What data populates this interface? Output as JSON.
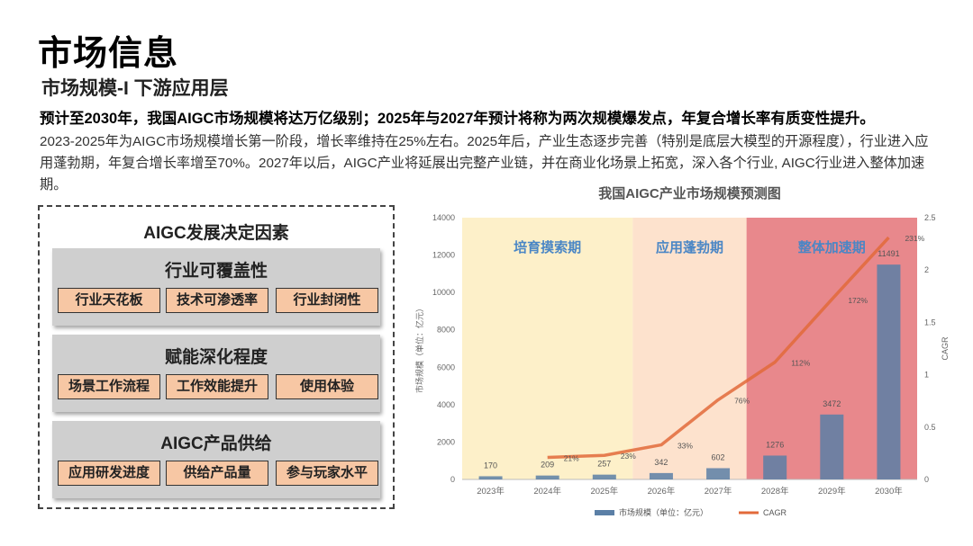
{
  "page": {
    "title": "市场信息",
    "subtitle": "市场规模-I 下游应用层",
    "headline": "预计至2030年，我国AIGC市场规模将达万亿级别；2025年与2027年预计将称为两次规模爆发点，年复合增长率有质变性提升。",
    "body": "2023-2025年为AIGC市场规模增长第一阶段，增长率维持在25%左右。2025年后，产业生态逐步完善（特别是底层大模型的开源程度），行业进入应用蓬勃期，年复合增长率增至70%。2027年以后，AIGC产业将延展出完整产业链，并在商业化场景上拓宽，深入各个行业, AIGC行业进入整体加速期。"
  },
  "factors": {
    "title": "AIGC发展决定因素",
    "groups": [
      {
        "title": "行业可覆盖性",
        "items": [
          "行业天花板",
          "技术可渗透率",
          "行业封闭性"
        ]
      },
      {
        "title": "赋能深化程度",
        "items": [
          "场景工作流程",
          "工作效能提升",
          "使用体验"
        ]
      },
      {
        "title": "AIGC产品供给",
        "items": [
          "应用研发进度",
          "供给产品量",
          "参与玩家水平"
        ]
      }
    ]
  },
  "colors": {
    "bar": "#5b7fa6",
    "line": "#e26a3a",
    "phase1": "#fdf0c9",
    "phase2": "#fde2cd",
    "phase3": "#e8888c",
    "phase_label": "#4a86c5"
  },
  "chart_data": {
    "type": "bar",
    "title": "我国AIGC产业市场规模预测图",
    "categories": [
      "2023年",
      "2024年",
      "2025年",
      "2026年",
      "2027年",
      "2028年",
      "2029年",
      "2030年"
    ],
    "series": [
      {
        "name": "市场规模（单位：亿元）",
        "kind": "bar",
        "axis": "left",
        "values": [
          170,
          209,
          257,
          342,
          602,
          1276,
          3472,
          11491
        ],
        "labels": [
          "170",
          "209",
          "257",
          "342",
          "602",
          "1276",
          "3472",
          "11491"
        ]
      },
      {
        "name": "CAGR",
        "kind": "line",
        "axis": "right",
        "values": [
          null,
          0.21,
          0.23,
          0.33,
          0.76,
          1.12,
          1.72,
          2.31
        ],
        "labels": [
          "",
          "21%",
          "23%",
          "33%",
          "76%",
          "112%",
          "172%",
          "231%"
        ]
      }
    ],
    "ylabel": "市场规模（单位：亿元）",
    "y2label": "CAGR",
    "ylim": [
      0,
      14000
    ],
    "yticks": [
      "0",
      "2000",
      "4000",
      "6000",
      "8000",
      "10000",
      "12000",
      "14000"
    ],
    "y2lim": [
      0,
      2.5
    ],
    "y2ticks": [
      "0",
      "0.5",
      "1",
      "1.5",
      "2",
      "2.5"
    ],
    "phases": [
      {
        "label": "培育摸索期",
        "from": 0,
        "to": 2
      },
      {
        "label": "应用蓬勃期",
        "from": 3,
        "to": 4
      },
      {
        "label": "整体加速期",
        "from": 5,
        "to": 7
      }
    ],
    "legend": [
      "市场规模（单位：亿元）",
      "CAGR"
    ]
  }
}
